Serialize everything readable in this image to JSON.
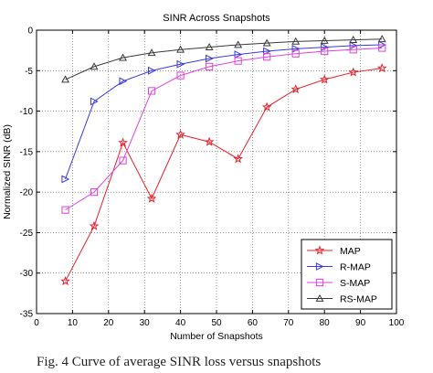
{
  "chart_data": {
    "type": "line",
    "title": "SINR Across Snapshots",
    "xlabel": "Number of Snapshots",
    "ylabel": "Normalized SINR (dB)",
    "xlim": [
      0,
      100
    ],
    "ylim": [
      -35,
      0
    ],
    "xticks": [
      0,
      10,
      20,
      30,
      40,
      50,
      60,
      70,
      80,
      90,
      100
    ],
    "yticks": [
      0,
      -5,
      -10,
      -15,
      -20,
      -25,
      -30,
      -35
    ],
    "grid": true,
    "legend_position": "bottom-right",
    "x": [
      8,
      16,
      24,
      32,
      40,
      48,
      56,
      64,
      72,
      80,
      88,
      96
    ],
    "series": [
      {
        "name": "MAP",
        "color": "#e8202a",
        "marker": "star",
        "values": [
          -31.0,
          -24.2,
          -13.9,
          -20.8,
          -12.9,
          -13.8,
          -15.9,
          -9.5,
          -7.3,
          -6.1,
          -5.2,
          -4.7
        ]
      },
      {
        "name": "R-MAP",
        "color": "#3b3bdc",
        "marker": "triangle-right",
        "values": [
          -18.4,
          -8.8,
          -6.3,
          -5.0,
          -4.2,
          -3.5,
          -3.0,
          -2.6,
          -2.3,
          -2.1,
          -1.9,
          -1.8
        ]
      },
      {
        "name": "S-MAP",
        "color": "#e040e0",
        "marker": "square",
        "values": [
          -22.2,
          -20.0,
          -16.1,
          -7.5,
          -5.6,
          -4.5,
          -3.8,
          -3.3,
          -2.9,
          -2.6,
          -2.4,
          -2.2
        ]
      },
      {
        "name": "RS-MAP",
        "color": "#3a3a3a",
        "marker": "triangle-up",
        "values": [
          -6.1,
          -4.5,
          -3.4,
          -2.8,
          -2.4,
          -2.1,
          -1.8,
          -1.6,
          -1.4,
          -1.3,
          -1.2,
          -1.1
        ]
      }
    ]
  },
  "caption": "Fig. 4 Curve of average SINR loss versus snapshots"
}
